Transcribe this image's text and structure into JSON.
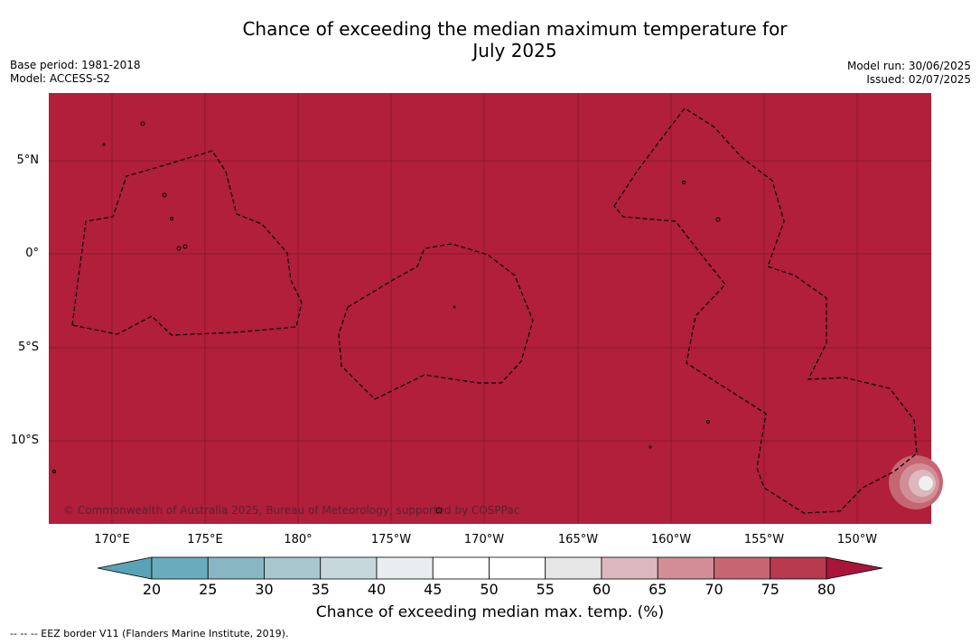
{
  "header": {
    "title_line1": "Chance of exceeding the median maximum temperature for",
    "title_line2": "July 2025",
    "base_period": "Base period: 1981-2018",
    "model": "Model: ACCESS-S2",
    "model_run": "Model run: 30/06/2025",
    "issued": "Issued: 02/07/2025"
  },
  "map": {
    "background_color": "#b11f3a",
    "lat_labels": [
      "5°N",
      "0°",
      "5°S",
      "10°S"
    ],
    "lon_labels": [
      "170°E",
      "175°E",
      "180°",
      "175°W",
      "170°W",
      "165°W",
      "160°W",
      "155°W",
      "150°W"
    ],
    "copyright": "© Commonwealth of Australia 2025, Bureau of Meteorology, supported by COSPPac"
  },
  "colorbar": {
    "ticks": [
      "20",
      "25",
      "30",
      "35",
      "40",
      "45",
      "50",
      "55",
      "60",
      "65",
      "70",
      "75",
      "80"
    ],
    "colors": [
      "#5aa3b4",
      "#6aacbe",
      "#88b6c3",
      "#a8c7ce",
      "#c7d8dd",
      "#e8eef0",
      "#ffffff",
      "#ffffff",
      "#e6e6e6",
      "#ddb8be",
      "#d28e97",
      "#c56672",
      "#b73a4f",
      "#a9153a"
    ],
    "title": "Chance of exceeding median max. temp. (%)"
  },
  "footnote": "--  --  -- EEZ border V11 (Flanders Marine Institute, 2019)."
}
